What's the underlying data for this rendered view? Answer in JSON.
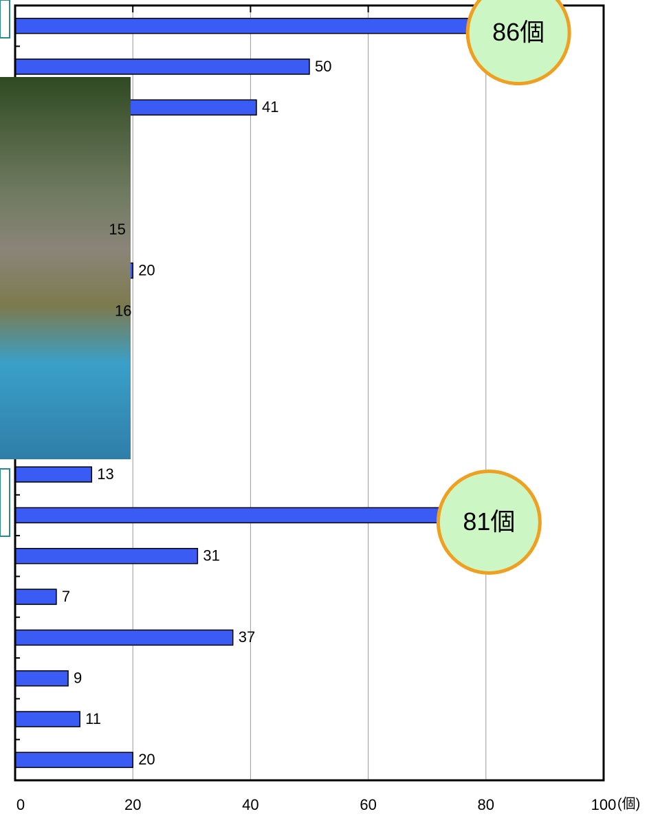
{
  "chart_data": {
    "type": "bar",
    "orientation": "horizontal",
    "values": [
      86,
      50,
      41,
      null,
      null,
      15,
      20,
      16,
      null,
      null,
      null,
      13,
      81,
      31,
      7,
      37,
      9,
      11,
      20
    ],
    "value_labels": [
      "86個",
      "50",
      "41",
      null,
      null,
      "15",
      "20",
      "16",
      null,
      null,
      null,
      "13",
      "81個",
      "31",
      "7",
      "37",
      "9",
      "11",
      "20"
    ],
    "color": "#3a5cf5",
    "xlim": [
      0,
      100
    ],
    "xticks": [
      0,
      20,
      40,
      60,
      80,
      100
    ],
    "x_unit": "(個)",
    "grid": true
  }
}
